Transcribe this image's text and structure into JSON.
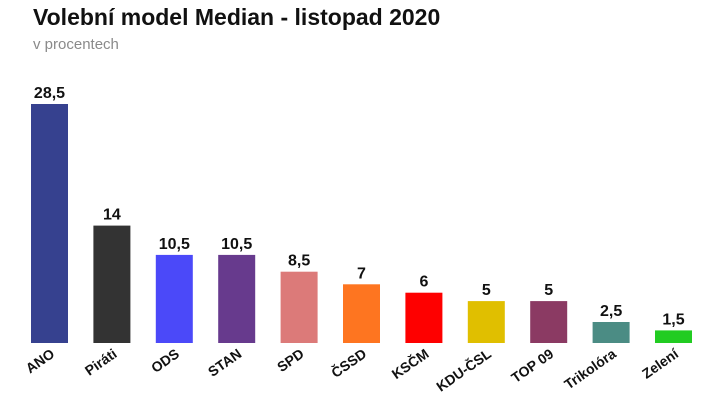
{
  "chart_data": {
    "type": "bar",
    "title": "Volební model Median - listopad 2020",
    "subtitle": "v procentech",
    "categories": [
      "ANO",
      "Piráti",
      "ODS",
      "STAN",
      "SPD",
      "ČSSD",
      "KSČM",
      "KDU-ČSL",
      "TOP 09",
      "Trikolóra",
      "Zelení"
    ],
    "values": [
      28.5,
      14,
      10.5,
      10.5,
      8.5,
      7,
      6,
      5,
      5,
      2.5,
      1.5
    ],
    "value_labels": [
      "28,5",
      "14",
      "10,5",
      "10,5",
      "8,5",
      "7",
      "6",
      "5",
      "5",
      "2,5",
      "1,5"
    ],
    "colors": [
      "#36418f",
      "#333333",
      "#4b49f9",
      "#673a8d",
      "#dc7a79",
      "#fe7520",
      "#fe0000",
      "#e0bf00",
      "#8b3a63",
      "#4b8c84",
      "#22cc22"
    ],
    "ylim": [
      0,
      28.5
    ],
    "grid": false,
    "legend": "none"
  }
}
